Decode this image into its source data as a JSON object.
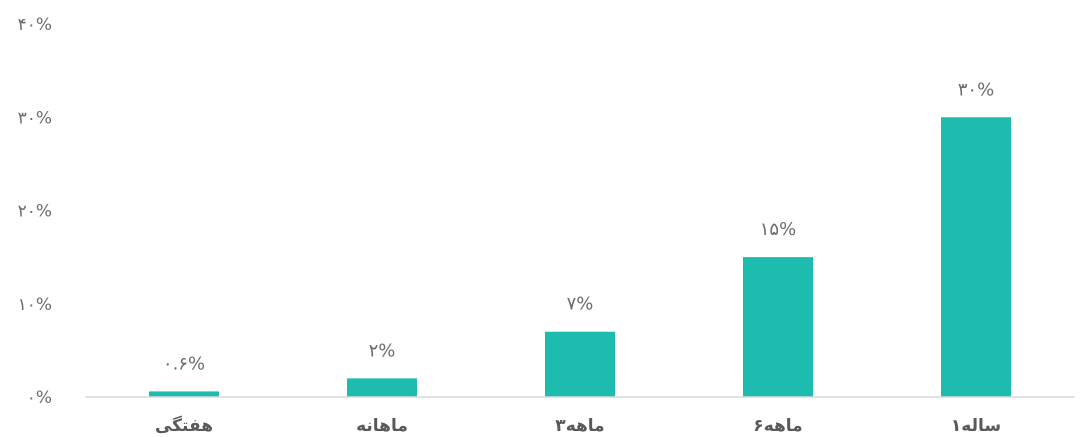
{
  "chart_data": {
    "type": "bar",
    "categories": [
      "هفتگی",
      "ماهانه",
      "۳ماهه",
      "۶ماهه",
      "۱ساله"
    ],
    "values": [
      0.6,
      2,
      7,
      15,
      30
    ],
    "value_labels": [
      "۰.۶%",
      "۲%",
      "۷%",
      "۱۵%",
      "۳۰%"
    ],
    "y_ticks": [
      0,
      10,
      20,
      30,
      40
    ],
    "y_tick_labels": [
      "۰%",
      "۱۰%",
      "۲۰%",
      "۳۰%",
      "۴۰%"
    ],
    "ylim": [
      0,
      40
    ],
    "grid": false,
    "legend": "none",
    "bar_color": "#1ebbaf",
    "axis_color": "#d9d9d9",
    "text_color": "#6b6b6b"
  }
}
